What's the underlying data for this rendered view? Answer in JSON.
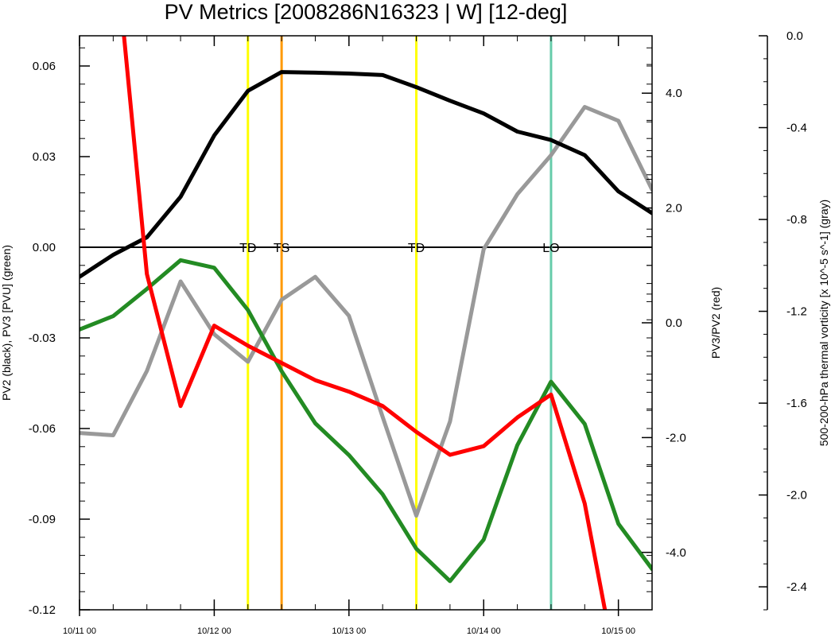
{
  "chart_data": {
    "type": "line",
    "title": "PV Metrics [2008286N16323 | W] [12-deg]",
    "x_tick_labels": [
      "10/11 00",
      "10/12 00",
      "10/13 00",
      "10/14 00",
      "10/15 00"
    ],
    "x_range_days": [
      0,
      4.25
    ],
    "left_axis": {
      "label": "PV2 (black), PV3 [PVU] (green)",
      "ylim": [
        -0.12,
        0.07
      ],
      "ticks": [
        0.06,
        0.03,
        0.0,
        -0.03,
        -0.06,
        -0.09,
        -0.12
      ],
      "tick_labels": [
        "0.06",
        "0.03",
        "0.00",
        "-0.03",
        "-0.06",
        "-0.09",
        "-0.12"
      ]
    },
    "right_axis": {
      "label": "PV3/PV2 (red)",
      "ylim": [
        -5.0,
        5.0
      ],
      "ticks": [
        4.0,
        2.0,
        0.0,
        -2.0,
        -4.0
      ],
      "tick_labels": [
        "4.0",
        "2.0",
        "0.0",
        "-2.0",
        "-4.0"
      ]
    },
    "far_right_axis": {
      "label": "500-200-hPa thermal vorticity [x 10^-5 s^-1] (gray)",
      "ylim": [
        -2.5,
        0.0
      ],
      "ticks": [
        0.0,
        -0.4,
        -0.8,
        -1.2,
        -1.6,
        -2.0,
        -2.4
      ],
      "tick_labels": [
        "0.0",
        "-0.4",
        "-0.8",
        "-1.2",
        "-1.6",
        "-2.0",
        "-2.4"
      ]
    },
    "zero_line": 0.0,
    "series": [
      {
        "axis": "left",
        "color": "#000000",
        "x": [
          0,
          0.25,
          0.5,
          0.75,
          1.0,
          1.25,
          1.5,
          1.75,
          2.0,
          2.25,
          2.5,
          2.75,
          3.0,
          3.25,
          3.5,
          3.75,
          4.0,
          4.25
        ],
        "values": [
          -0.0098,
          -0.0025,
          0.0033,
          0.0167,
          0.037,
          0.0518,
          0.058,
          0.0578,
          0.0575,
          0.057,
          0.053,
          0.0485,
          0.0443,
          0.0383,
          0.0355,
          0.0305,
          0.0185,
          0.0113
        ]
      },
      {
        "axis": "left",
        "color": "#238b23",
        "x": [
          0,
          0.25,
          0.5,
          0.75,
          1.0,
          1.25,
          1.5,
          1.75,
          2.0,
          2.25,
          2.5,
          2.75,
          3.0,
          3.25,
          3.5,
          3.75,
          4.0,
          4.25
        ],
        "values": [
          -0.0272,
          -0.0228,
          -0.0138,
          -0.0043,
          -0.0068,
          -0.0208,
          -0.041,
          -0.0583,
          -0.0688,
          -0.0818,
          -0.0998,
          -0.1105,
          -0.0968,
          -0.0655,
          -0.0445,
          -0.0585,
          -0.0915,
          -0.1065
        ]
      },
      {
        "axis": "right",
        "color": "#ff0000",
        "x": [
          0.33,
          0.5,
          0.75,
          1.0,
          1.25,
          1.5,
          1.75,
          2.0,
          2.25,
          2.5,
          2.75,
          3.0,
          3.25,
          3.5,
          3.75,
          3.9
        ],
        "values": [
          5.0,
          0.85,
          -1.45,
          -0.05,
          -0.4,
          -0.7,
          -1.0,
          -1.2,
          -1.45,
          -1.9,
          -2.3,
          -2.15,
          -1.65,
          -1.25,
          -3.15,
          -5.0
        ]
      },
      {
        "axis": "far_right",
        "color": "#999999",
        "x": [
          0,
          0.25,
          0.5,
          0.75,
          1.0,
          1.25,
          1.5,
          1.75,
          2.0,
          2.25,
          2.5,
          2.75,
          3.0,
          3.25,
          3.5,
          3.75,
          4.0,
          4.25
        ],
        "values": [
          -1.73,
          -1.74,
          -1.46,
          -1.07,
          -1.3,
          -1.42,
          -1.15,
          -1.05,
          -1.22,
          -1.66,
          -2.09,
          -1.68,
          -0.93,
          -0.69,
          -0.52,
          -0.31,
          -0.37,
          -0.67
        ]
      }
    ],
    "stage_lines": [
      {
        "x": 1.25,
        "label": "TD",
        "color": "#ffff00"
      },
      {
        "x": 1.5,
        "label": "TS",
        "color": "#ff9900"
      },
      {
        "x": 2.5,
        "label": "TD",
        "color": "#ffff00"
      },
      {
        "x": 3.5,
        "label": "LO",
        "color": "#66ccaa"
      }
    ],
    "grid": false
  }
}
